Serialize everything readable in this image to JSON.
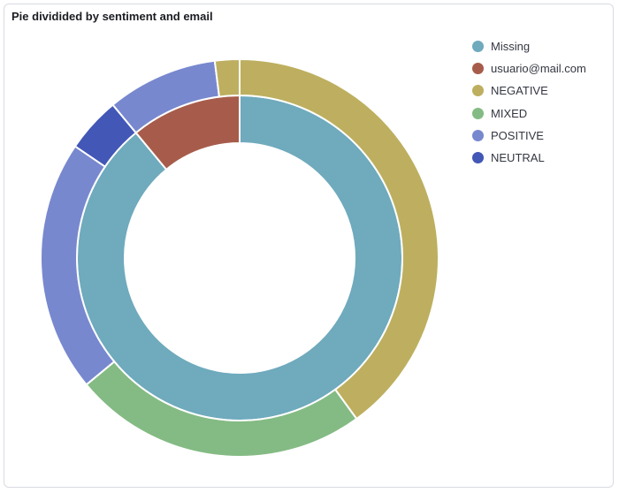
{
  "panel": {
    "title": "Pie dividided by sentiment and email"
  },
  "legend": {
    "items": [
      {
        "label": "Missing",
        "color": "#6faabd"
      },
      {
        "label": "usuario@mail.com",
        "color": "#a75c4b"
      },
      {
        "label": "NEGATIVE",
        "color": "#bdaf5f"
      },
      {
        "label": "MIXED",
        "color": "#84bb84"
      },
      {
        "label": "POSITIVE",
        "color": "#7888cf"
      },
      {
        "label": "NEUTRAL",
        "color": "#4257b6"
      }
    ]
  },
  "chart_data": {
    "type": "pie",
    "title": "Pie dividided by sentiment and email",
    "donut": true,
    "legend_position": "top-right",
    "rings": [
      {
        "name": "email",
        "slices": [
          {
            "label": "Missing",
            "value": 89,
            "color": "#6faabd"
          },
          {
            "label": "usuario@mail.com",
            "value": 11,
            "color": "#a75c4b"
          }
        ]
      },
      {
        "name": "sentiment",
        "slices": [
          {
            "label": "NEGATIVE",
            "value": 40,
            "parent": "Missing",
            "color": "#bdaf5f"
          },
          {
            "label": "MIXED",
            "value": 24,
            "parent": "Missing",
            "color": "#84bb84"
          },
          {
            "label": "POSITIVE",
            "value": 20.5,
            "parent": "Missing",
            "color": "#7888cf"
          },
          {
            "label": "NEUTRAL",
            "value": 4.5,
            "parent": "Missing",
            "color": "#4257b6"
          },
          {
            "label": "POSITIVE",
            "value": 9,
            "parent": "usuario@mail.com",
            "color": "#7888cf"
          },
          {
            "label": "NEGATIVE",
            "value": 2,
            "parent": "usuario@mail.com",
            "color": "#bdaf5f"
          }
        ]
      }
    ]
  }
}
